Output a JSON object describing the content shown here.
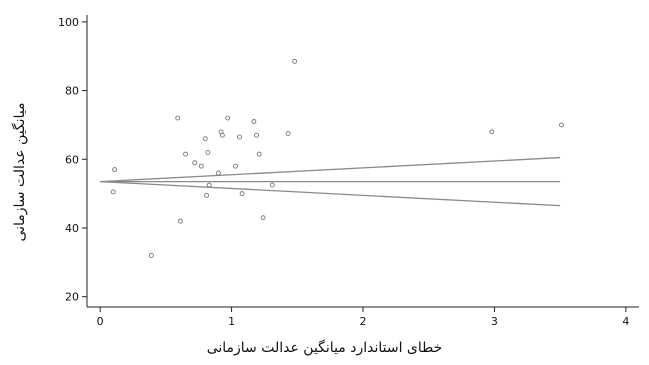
{
  "chart_data": {
    "type": "scatter",
    "xlabel": "خطای استاندارد میانگین عدالت سازمانی",
    "ylabel": "میانگین عدالت سازمانی",
    "xlim": [
      -0.1,
      4.1
    ],
    "ylim": [
      17,
      102
    ],
    "xticks": [
      0,
      1,
      2,
      3,
      4
    ],
    "yticks": [
      20,
      40,
      60,
      80,
      100
    ],
    "grid": false,
    "points": [
      {
        "x": 0.11,
        "y": 57.0
      },
      {
        "x": 0.1,
        "y": 50.5
      },
      {
        "x": 0.39,
        "y": 32.0
      },
      {
        "x": 0.59,
        "y": 72.0
      },
      {
        "x": 0.61,
        "y": 42.0
      },
      {
        "x": 0.65,
        "y": 61.5
      },
      {
        "x": 0.72,
        "y": 59.0
      },
      {
        "x": 0.77,
        "y": 58.0
      },
      {
        "x": 0.8,
        "y": 66.0
      },
      {
        "x": 0.81,
        "y": 49.5
      },
      {
        "x": 0.82,
        "y": 62.0
      },
      {
        "x": 0.83,
        "y": 52.5
      },
      {
        "x": 0.9,
        "y": 56.0
      },
      {
        "x": 0.92,
        "y": 68.0
      },
      {
        "x": 0.93,
        "y": 67.0
      },
      {
        "x": 0.97,
        "y": 72.0
      },
      {
        "x": 1.03,
        "y": 58.0
      },
      {
        "x": 1.06,
        "y": 66.5
      },
      {
        "x": 1.08,
        "y": 50.0
      },
      {
        "x": 1.17,
        "y": 71.0
      },
      {
        "x": 1.19,
        "y": 67.0
      },
      {
        "x": 1.21,
        "y": 61.5
      },
      {
        "x": 1.24,
        "y": 43.0
      },
      {
        "x": 1.31,
        "y": 52.5
      },
      {
        "x": 1.43,
        "y": 67.5
      },
      {
        "x": 1.48,
        "y": 88.5
      },
      {
        "x": 2.98,
        "y": 68.0
      },
      {
        "x": 3.51,
        "y": 70.0
      }
    ],
    "lines": [
      {
        "x": [
          0.0,
          3.5
        ],
        "y": [
          53.5,
          53.5
        ]
      },
      {
        "x": [
          0.0,
          3.5
        ],
        "y": [
          53.5,
          60.5
        ]
      },
      {
        "x": [
          0.0,
          3.5
        ],
        "y": [
          53.5,
          46.5
        ]
      }
    ]
  }
}
